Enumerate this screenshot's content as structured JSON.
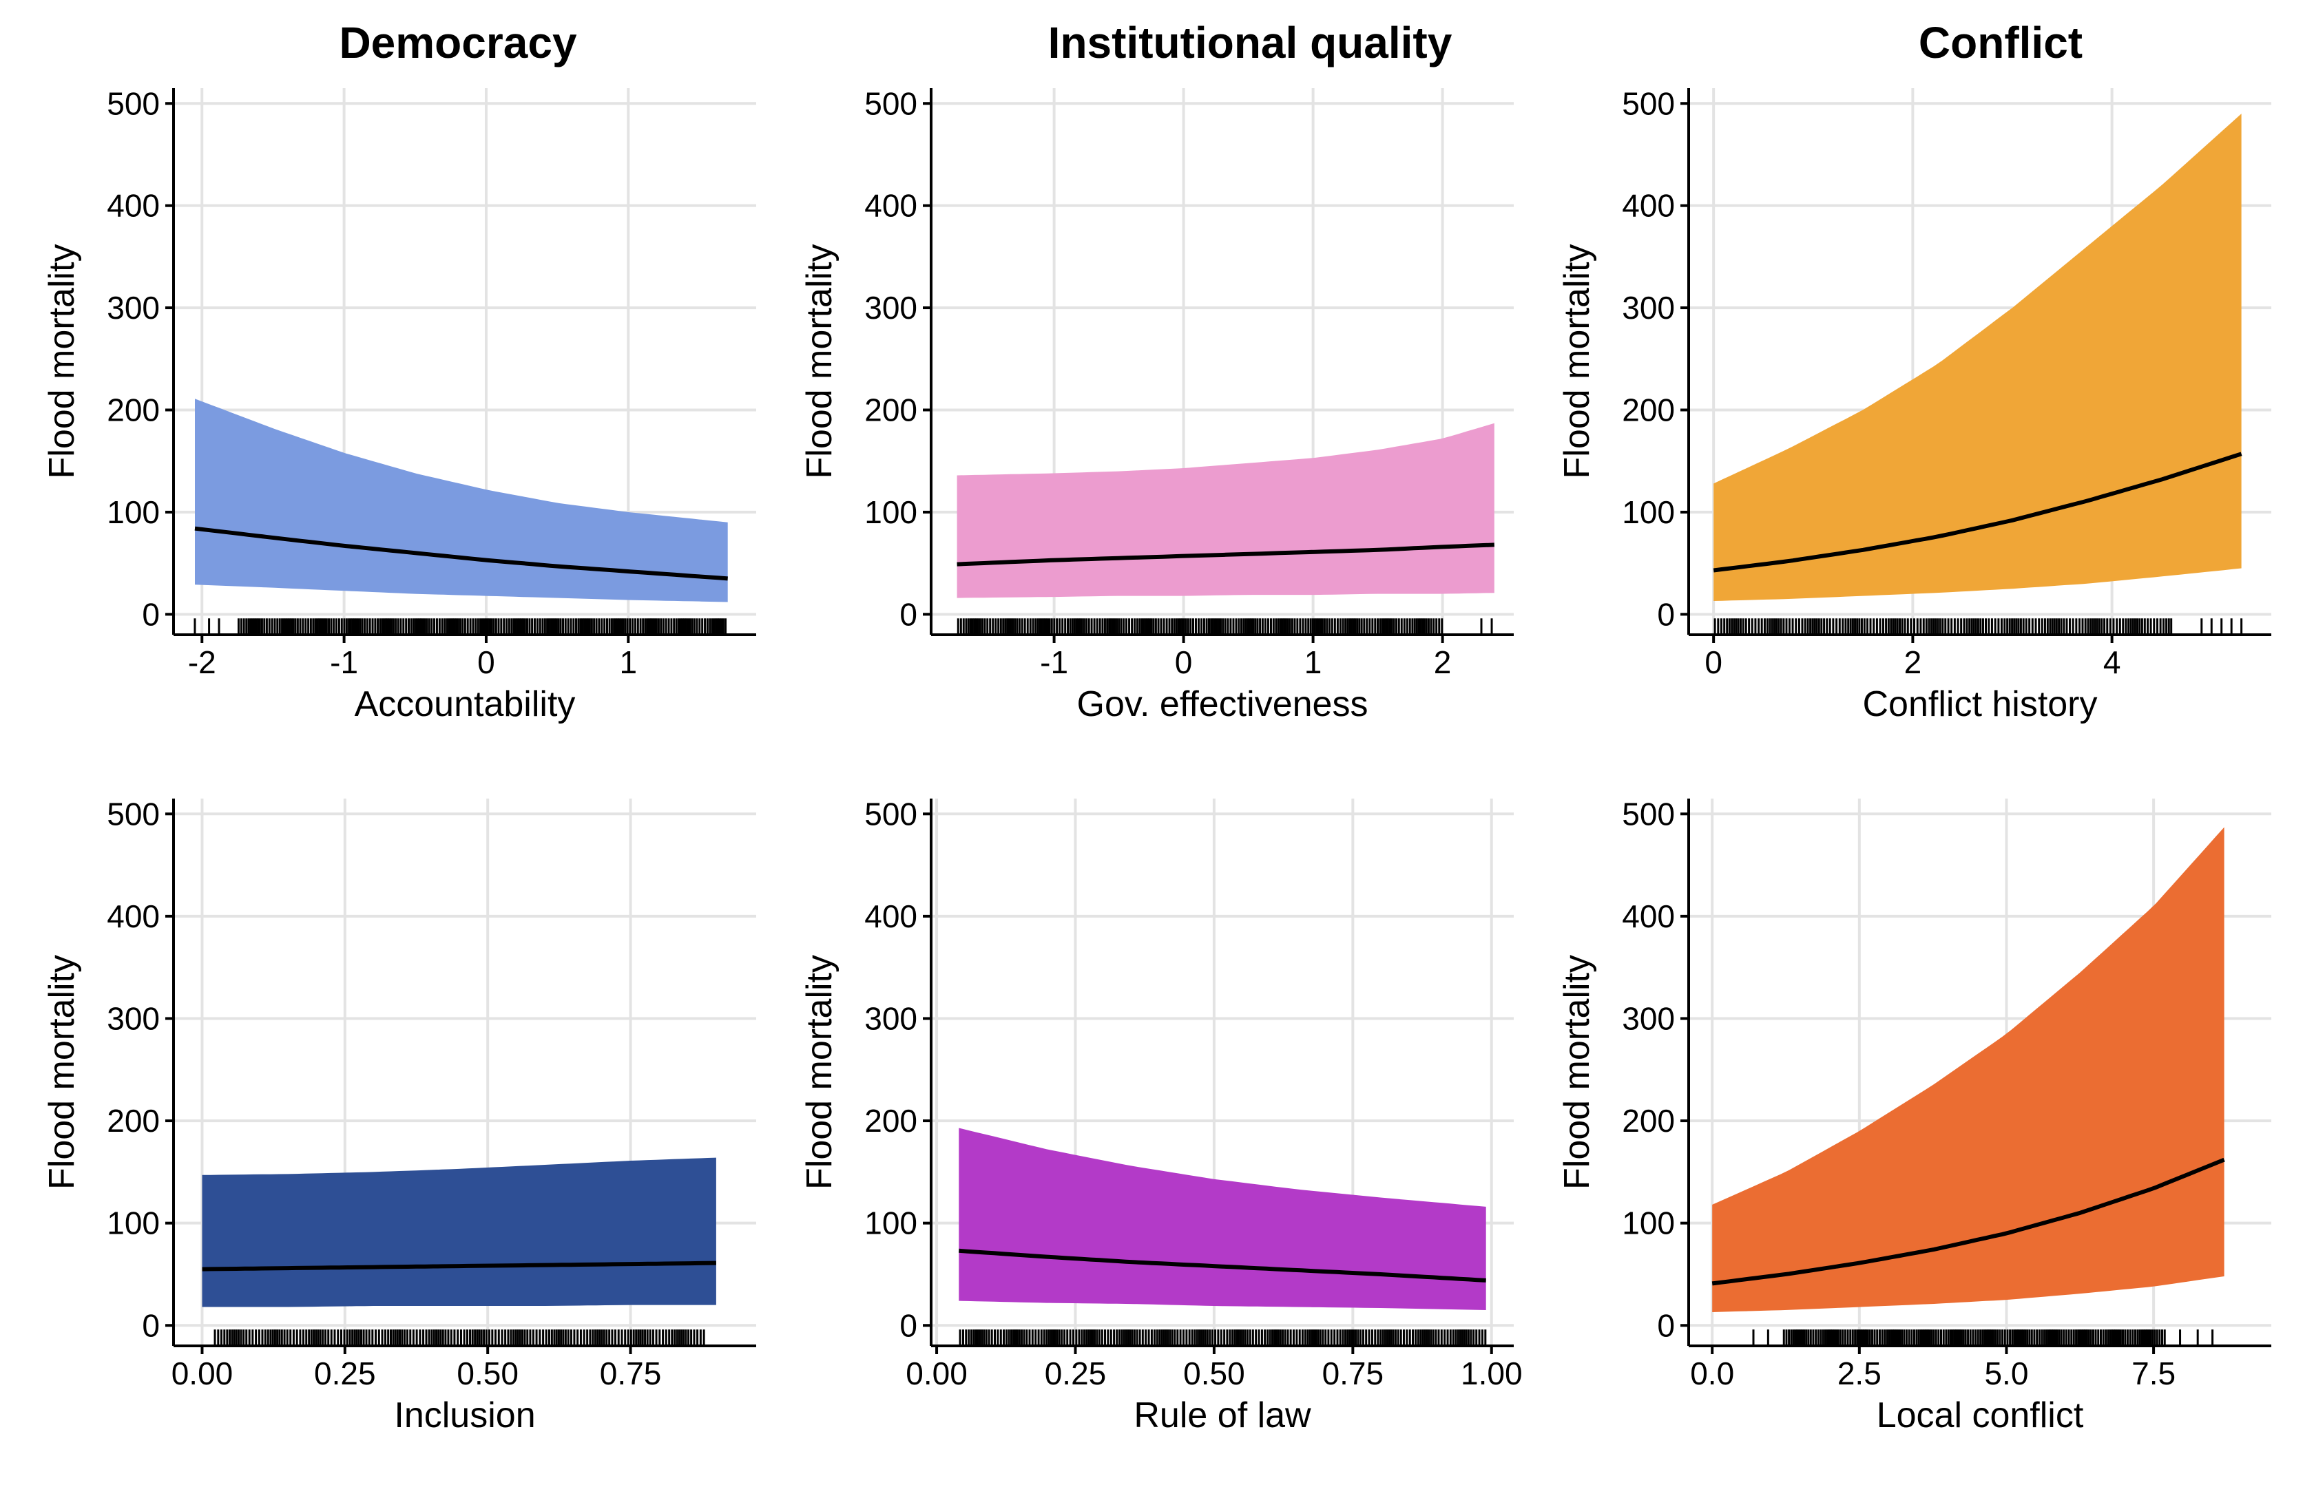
{
  "column_titles": [
    "Democracy",
    "Institutional quality",
    "Conflict"
  ],
  "chart_data": [
    {
      "type": "area",
      "column": "Democracy",
      "xlabel": "Accountability",
      "ylabel": "Flood mortality",
      "color": "#7b9be0",
      "xlim": [
        -2.2,
        1.9
      ],
      "ylim": [
        -20,
        515
      ],
      "xticks": [
        -2,
        -1,
        0,
        1
      ],
      "xtick_labels": [
        "-2",
        "-1",
        "0",
        "1"
      ],
      "yticks": [
        0,
        100,
        200,
        300,
        400,
        500
      ],
      "ytick_labels": [
        "0",
        "100",
        "200",
        "300",
        "400",
        "500"
      ],
      "grid": true,
      "x": [
        -2.05,
        -1.5,
        -1.0,
        -0.5,
        0.0,
        0.5,
        1.0,
        1.7
      ],
      "fit": [
        84,
        75,
        67,
        60,
        53,
        47,
        42,
        35
      ],
      "lower": [
        29,
        26,
        23,
        20,
        18,
        16,
        14,
        12
      ],
      "upper": [
        211,
        182,
        158,
        138,
        122,
        109,
        100,
        90
      ],
      "rug": {
        "start": -1.75,
        "end": 1.7,
        "count": 220,
        "extra": [
          -2.05,
          -1.95,
          -1.88
        ]
      }
    },
    {
      "type": "area",
      "column": "Institutional quality",
      "xlabel": "Gov. effectiveness",
      "ylabel": "Flood mortality",
      "color": "#ec9ccf",
      "xlim": [
        -1.95,
        2.55
      ],
      "ylim": [
        -20,
        515
      ],
      "xticks": [
        -1,
        0,
        1,
        2
      ],
      "xtick_labels": [
        "-1",
        "0",
        "1",
        "2"
      ],
      "yticks": [
        0,
        100,
        200,
        300,
        400,
        500
      ],
      "ytick_labels": [
        "0",
        "100",
        "200",
        "300",
        "400",
        "500"
      ],
      "grid": true,
      "x": [
        -1.75,
        -1.0,
        -0.5,
        0.0,
        0.5,
        1.0,
        1.5,
        2.0,
        2.4
      ],
      "fit": [
        49,
        53,
        55,
        57,
        59,
        61,
        63,
        66,
        68
      ],
      "lower": [
        16,
        17,
        18,
        18,
        19,
        19,
        20,
        20,
        21
      ],
      "upper": [
        136,
        138,
        140,
        143,
        148,
        153,
        161,
        172,
        187
      ],
      "rug": {
        "start": -1.75,
        "end": 2.0,
        "count": 210,
        "extra": [
          2.3,
          2.38
        ]
      }
    },
    {
      "type": "area",
      "column": "Conflict",
      "xlabel": "Conflict history",
      "ylabel": "Flood mortality",
      "color": "#f0a637",
      "xlim": [
        -0.25,
        5.6
      ],
      "ylim": [
        -20,
        515
      ],
      "xticks": [
        0,
        2,
        4
      ],
      "xtick_labels": [
        "0",
        "2",
        "4"
      ],
      "yticks": [
        0,
        100,
        200,
        300,
        400,
        500
      ],
      "ytick_labels": [
        "0",
        "100",
        "200",
        "300",
        "400",
        "500"
      ],
      "grid": true,
      "x": [
        0,
        0.75,
        1.5,
        2.25,
        3.0,
        3.75,
        4.5,
        5.3
      ],
      "fit": [
        43,
        52,
        63,
        76,
        92,
        111,
        132,
        157
      ],
      "lower": [
        13,
        15,
        18,
        21,
        25,
        30,
        37,
        45
      ],
      "upper": [
        128,
        162,
        200,
        245,
        300,
        360,
        420,
        490
      ],
      "rug": {
        "start": 0.0,
        "end": 4.6,
        "count": 170,
        "extra": [
          4.9,
          5.0,
          5.1,
          5.2,
          5.3
        ]
      }
    },
    {
      "type": "area",
      "column": "Democracy",
      "xlabel": "Inclusion",
      "ylabel": "Flood mortality",
      "color": "#2e4f95",
      "xlim": [
        -0.05,
        0.97
      ],
      "ylim": [
        -20,
        515
      ],
      "xticks": [
        0.0,
        0.25,
        0.5,
        0.75
      ],
      "xtick_labels": [
        "0.00",
        "0.25",
        "0.50",
        "0.75"
      ],
      "yticks": [
        0,
        100,
        200,
        300,
        400,
        500
      ],
      "ytick_labels": [
        "0",
        "100",
        "200",
        "300",
        "400",
        "500"
      ],
      "grid": true,
      "x": [
        0.0,
        0.15,
        0.3,
        0.45,
        0.6,
        0.75,
        0.9
      ],
      "fit": [
        55,
        56,
        57,
        58,
        59,
        60,
        61
      ],
      "lower": [
        18,
        18,
        19,
        19,
        19,
        20,
        20
      ],
      "upper": [
        147,
        148,
        150,
        153,
        157,
        161,
        164
      ],
      "rug": {
        "start": 0.02,
        "end": 0.88,
        "count": 180,
        "extra": []
      }
    },
    {
      "type": "area",
      "column": "Institutional quality",
      "xlabel": "Rule of law",
      "ylabel": "Flood mortality",
      "color": "#b33ac8",
      "xlim": [
        -0.01,
        1.04
      ],
      "ylim": [
        -20,
        515
      ],
      "xticks": [
        0.0,
        0.25,
        0.5,
        0.75,
        1.0
      ],
      "xtick_labels": [
        "0.00",
        "0.25",
        "0.50",
        "0.75",
        "1.00"
      ],
      "yticks": [
        0,
        100,
        200,
        300,
        400,
        500
      ],
      "ytick_labels": [
        "0",
        "100",
        "200",
        "300",
        "400",
        "500"
      ],
      "grid": true,
      "x": [
        0.04,
        0.2,
        0.35,
        0.5,
        0.65,
        0.8,
        0.99
      ],
      "fit": [
        73,
        67,
        62,
        58,
        54,
        50,
        44
      ],
      "lower": [
        24,
        22,
        21,
        19,
        18,
        17,
        15
      ],
      "upper": [
        193,
        172,
        156,
        143,
        133,
        125,
        116
      ],
      "rug": {
        "start": 0.04,
        "end": 0.99,
        "count": 210,
        "extra": []
      }
    },
    {
      "type": "area",
      "column": "Conflict",
      "xlabel": "Local conflict",
      "ylabel": "Flood mortality",
      "color": "#eb6d32",
      "xlim": [
        -0.4,
        9.5
      ],
      "ylim": [
        -20,
        515
      ],
      "xticks": [
        0.0,
        2.5,
        5.0,
        7.5
      ],
      "xtick_labels": [
        "0.0",
        "2.5",
        "5.0",
        "7.5"
      ],
      "yticks": [
        0,
        100,
        200,
        300,
        400,
        500
      ],
      "ytick_labels": [
        "0",
        "100",
        "200",
        "300",
        "400",
        "500"
      ],
      "grid": true,
      "x": [
        0,
        1.25,
        2.5,
        3.75,
        5.0,
        6.25,
        7.5,
        8.7
      ],
      "fit": [
        41,
        50,
        61,
        74,
        90,
        110,
        134,
        162
      ],
      "lower": [
        13,
        15,
        18,
        21,
        25,
        31,
        38,
        48
      ],
      "upper": [
        118,
        150,
        190,
        235,
        285,
        345,
        410,
        487
      ],
      "rug": {
        "start": 1.2,
        "end": 7.7,
        "count": 180,
        "extra": [
          0.7,
          0.95,
          7.95,
          8.25,
          8.5
        ]
      }
    }
  ]
}
